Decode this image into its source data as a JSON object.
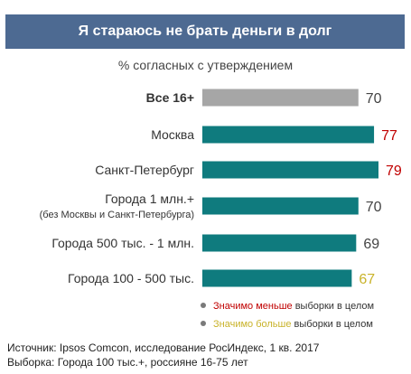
{
  "header": {
    "title": "Я стараюсь не брать деньги в долг"
  },
  "colors": {
    "total_bar": "#a6a6a6",
    "city_bar": "#0f7b7e",
    "less": "#c00000",
    "more": "#c9b32a",
    "default_value": "#444444",
    "header_bg": "#4d6a92"
  },
  "chart_data": {
    "type": "bar",
    "orientation": "horizontal",
    "title": "Я стараюсь не брать деньги в долг",
    "subtitle": "% согласных с утверждением",
    "categories": [
      {
        "label": "Все 16+",
        "sublabel": "",
        "bold": true
      },
      {
        "label": "Москва",
        "sublabel": ""
      },
      {
        "label": "Санкт-Петербург",
        "sublabel": ""
      },
      {
        "label": "Города 1 млн.+",
        "sublabel": "(без Москвы и Санкт-Петербурга)"
      },
      {
        "label": "Города 500 тыс. - 1 млн.",
        "sublabel": ""
      },
      {
        "label": "Города 100 - 500 тыс.",
        "sublabel": ""
      }
    ],
    "values": [
      70,
      77,
      79,
      70,
      69,
      67
    ],
    "significance": [
      "total",
      "less",
      "less",
      "none",
      "none",
      "more"
    ],
    "xlim": [
      0,
      79
    ],
    "grid": false
  },
  "legend": {
    "less": {
      "colored": "Значимо меньше",
      "rest": " выборки в целом"
    },
    "more": {
      "colored": "Значимо больше",
      "rest": " выборки в целом"
    }
  },
  "footer": {
    "source": "Источник: Ipsos Comcon, исследование РосИндекс, 1 кв. 2017",
    "sample": "Выборка: Города 100 тыс.+, россияне 16-75 лет"
  }
}
